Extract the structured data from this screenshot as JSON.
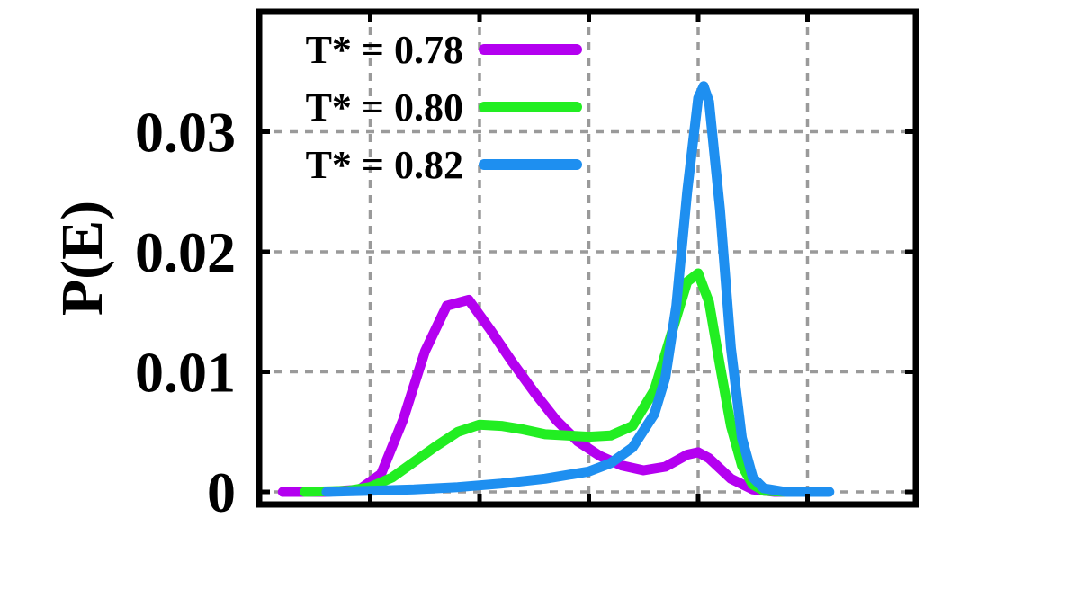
{
  "chart_data": {
    "type": "line",
    "title": "",
    "xlabel": "",
    "ylabel": "P(E)",
    "ylim": [
      0,
      0.03
    ],
    "yticks": [
      0,
      0.01,
      0.02,
      0.03
    ],
    "ytick_labels": [
      "0",
      "0.01",
      "0.02",
      "0.03"
    ],
    "xticks": [
      1,
      2,
      3,
      4,
      5
    ],
    "xlim": [
      0,
      6
    ],
    "grid": true,
    "legend_position": "top-left",
    "series": [
      {
        "name": "T* = 0.78",
        "color": "#b400f0",
        "x": [
          0.2,
          0.6,
          0.9,
          1.1,
          1.3,
          1.5,
          1.7,
          1.9,
          2.1,
          2.3,
          2.5,
          2.7,
          2.9,
          3.1,
          3.3,
          3.5,
          3.7,
          3.9,
          4.0,
          4.1,
          4.3,
          4.5,
          4.7,
          4.9,
          5.1
        ],
        "y": [
          0.0,
          0.0,
          0.0002,
          0.0015,
          0.006,
          0.0117,
          0.0155,
          0.016,
          0.0135,
          0.0108,
          0.0083,
          0.006,
          0.0042,
          0.003,
          0.0022,
          0.0018,
          0.0021,
          0.0031,
          0.0033,
          0.0028,
          0.0011,
          0.0002,
          0.0,
          0.0,
          0.0
        ]
      },
      {
        "name": "T* = 0.80",
        "color": "#22ee22",
        "x": [
          0.4,
          0.8,
          1.0,
          1.2,
          1.4,
          1.6,
          1.8,
          2.0,
          2.2,
          2.4,
          2.6,
          2.8,
          3.0,
          3.2,
          3.4,
          3.6,
          3.8,
          3.9,
          4.0,
          4.1,
          4.2,
          4.3,
          4.4,
          4.5,
          4.6,
          4.8,
          5.1
        ],
        "y": [
          0.0,
          0.0001,
          0.0004,
          0.0012,
          0.0025,
          0.0038,
          0.005,
          0.0056,
          0.0055,
          0.0052,
          0.0048,
          0.0047,
          0.0046,
          0.0047,
          0.0055,
          0.0085,
          0.0145,
          0.0175,
          0.0182,
          0.0158,
          0.0105,
          0.0055,
          0.0022,
          0.0006,
          0.0001,
          0.0,
          0.0
        ]
      },
      {
        "name": "T* = 0.82",
        "color": "#1e8ff0",
        "x": [
          0.6,
          1.0,
          1.4,
          1.8,
          2.2,
          2.6,
          3.0,
          3.2,
          3.4,
          3.6,
          3.7,
          3.8,
          3.9,
          4.0,
          4.05,
          4.1,
          4.2,
          4.3,
          4.4,
          4.5,
          4.6,
          4.8,
          5.2
        ],
        "y": [
          0.0,
          0.0001,
          0.0002,
          0.0004,
          0.0007,
          0.0011,
          0.0017,
          0.0024,
          0.0037,
          0.0065,
          0.0095,
          0.0155,
          0.025,
          0.0328,
          0.0338,
          0.0325,
          0.0235,
          0.012,
          0.0045,
          0.0012,
          0.0003,
          0.0,
          0.0
        ]
      }
    ]
  }
}
